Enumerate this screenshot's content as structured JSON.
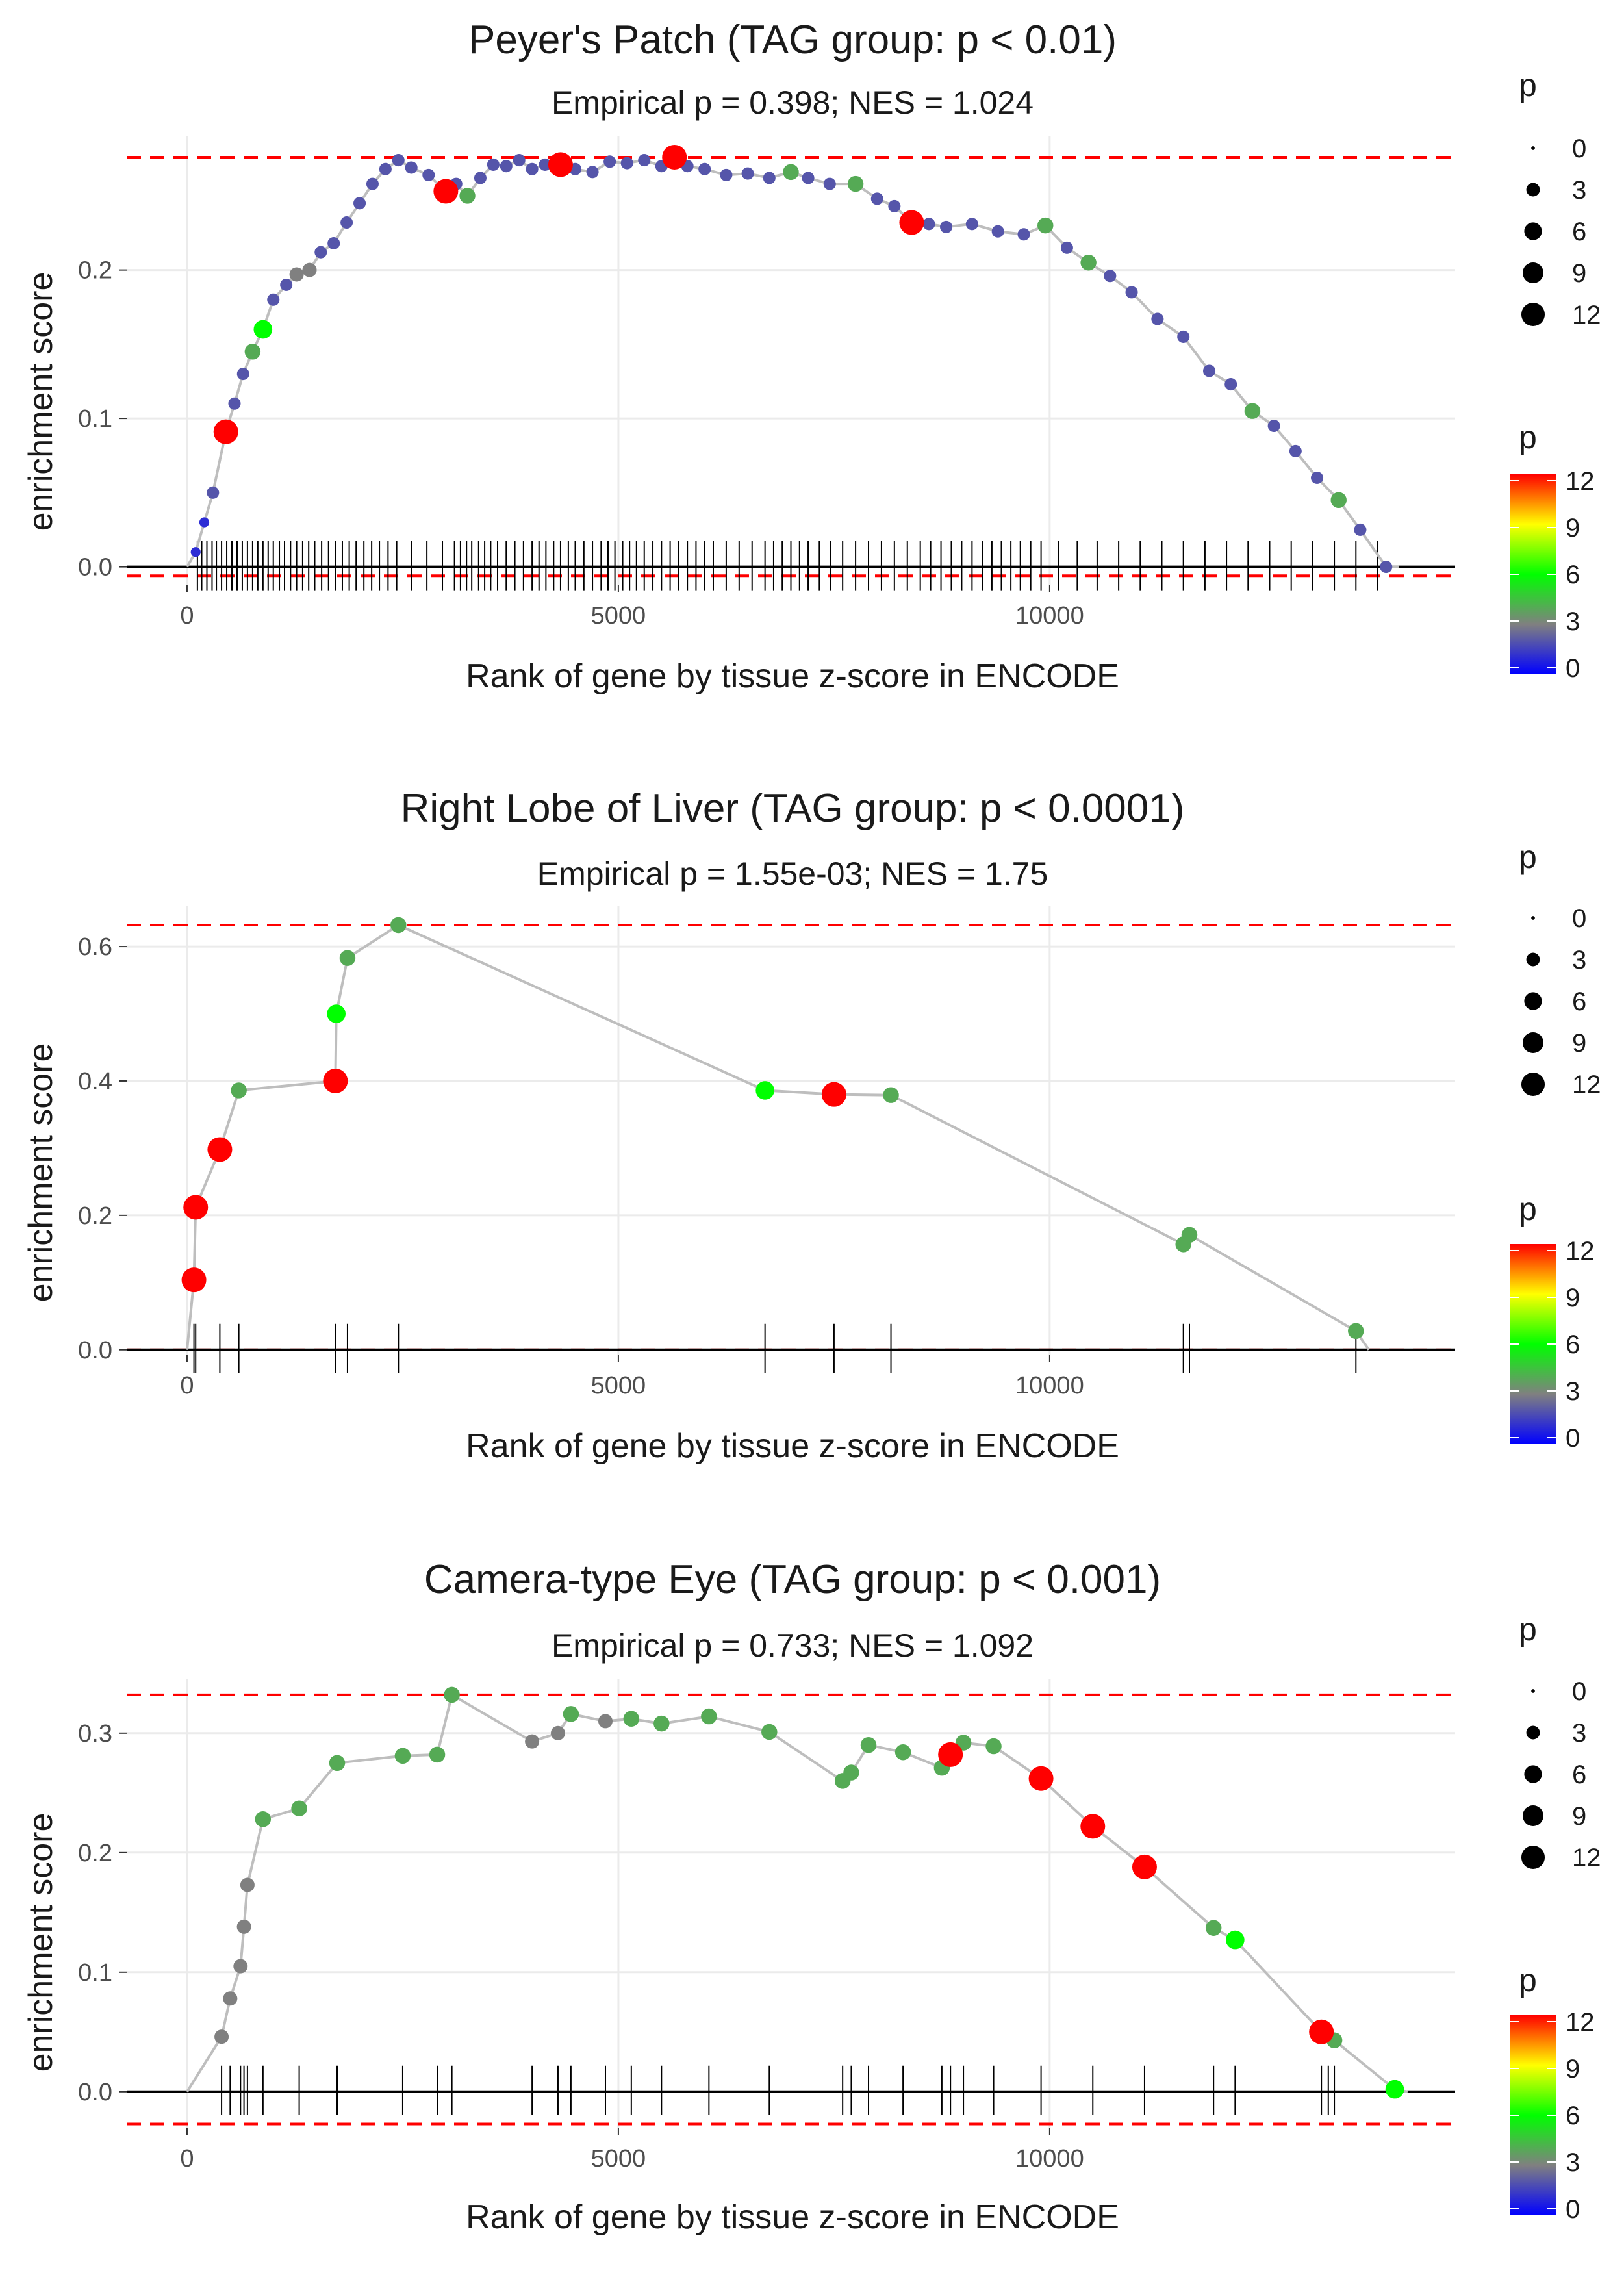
{
  "colors": {
    "threshold": "#ff0000",
    "line": "#bebebe",
    "grid": "#ebebeb",
    "rug": "#000000",
    "gradient": [
      "#0000ff",
      "#808080",
      "#00ff00",
      "#ffff00",
      "#ff0000"
    ]
  },
  "chart_data": [
    {
      "type": "line",
      "title": "Peyer's Patch (TAG group: p < 0.01)",
      "subtitle": "Empirical p = 0.398; NES = 1.024",
      "xlabel": "Rank of gene by tissue z-score in ENCODE",
      "ylabel": "enrichment score",
      "xlim": [
        -700,
        14700
      ],
      "ylim": [
        -0.012,
        0.29
      ],
      "x_ticks": [
        0,
        5000,
        10000
      ],
      "x_tick_labels": [
        "0",
        "5000",
        "10000"
      ],
      "y_ticks": [
        0.0,
        0.1,
        0.2
      ],
      "y_tick_labels": [
        "0.0",
        "0.1",
        "0.2"
      ],
      "max_line": 0.276,
      "min_line": -0.006,
      "legend_size": {
        "title": "p",
        "labels": [
          "0",
          "3",
          "6",
          "9",
          "12"
        ]
      },
      "legend_color": {
        "title": "p",
        "labels": [
          "12",
          "9",
          "6",
          "3",
          "0"
        ]
      },
      "points": [
        [
          100,
          0.01,
          1
        ],
        [
          200,
          0.03,
          1
        ],
        [
          300,
          0.05,
          2
        ],
        [
          450,
          0.091,
          12
        ],
        [
          550,
          0.11,
          2
        ],
        [
          650,
          0.13,
          2
        ],
        [
          760,
          0.145,
          4
        ],
        [
          880,
          0.16,
          6
        ],
        [
          1000,
          0.18,
          2
        ],
        [
          1150,
          0.19,
          2
        ],
        [
          1270,
          0.197,
          3
        ],
        [
          1420,
          0.2,
          3
        ],
        [
          1550,
          0.212,
          2
        ],
        [
          1700,
          0.218,
          2
        ],
        [
          1850,
          0.232,
          2
        ],
        [
          2000,
          0.245,
          2
        ],
        [
          2150,
          0.258,
          2
        ],
        [
          2300,
          0.268,
          2
        ],
        [
          2450,
          0.274,
          2
        ],
        [
          2600,
          0.269,
          2
        ],
        [
          2800,
          0.264,
          2
        ],
        [
          3000,
          0.253,
          12
        ],
        [
          3120,
          0.258,
          2
        ],
        [
          3250,
          0.25,
          4
        ],
        [
          3400,
          0.262,
          2
        ],
        [
          3550,
          0.271,
          2
        ],
        [
          3700,
          0.27,
          2
        ],
        [
          3850,
          0.274,
          2
        ],
        [
          4000,
          0.268,
          2
        ],
        [
          4150,
          0.271,
          2
        ],
        [
          4330,
          0.271,
          12
        ],
        [
          4500,
          0.268,
          2
        ],
        [
          4700,
          0.266,
          2
        ],
        [
          4900,
          0.273,
          2
        ],
        [
          5100,
          0.272,
          2
        ],
        [
          5300,
          0.274,
          2
        ],
        [
          5500,
          0.27,
          2
        ],
        [
          5650,
          0.276,
          12
        ],
        [
          5800,
          0.27,
          2
        ],
        [
          6000,
          0.268,
          2
        ],
        [
          6250,
          0.264,
          2
        ],
        [
          6500,
          0.265,
          2
        ],
        [
          6750,
          0.262,
          2
        ],
        [
          7000,
          0.266,
          4
        ],
        [
          7200,
          0.262,
          2
        ],
        [
          7450,
          0.258,
          2
        ],
        [
          7750,
          0.258,
          4
        ],
        [
          8000,
          0.248,
          2
        ],
        [
          8200,
          0.243,
          2
        ],
        [
          8400,
          0.232,
          12
        ],
        [
          8600,
          0.231,
          2
        ],
        [
          8800,
          0.229,
          2
        ],
        [
          9100,
          0.231,
          2
        ],
        [
          9400,
          0.226,
          2
        ],
        [
          9700,
          0.224,
          2
        ],
        [
          9950,
          0.23,
          4
        ],
        [
          10200,
          0.215,
          2
        ],
        [
          10450,
          0.205,
          4
        ],
        [
          10700,
          0.196,
          2
        ],
        [
          10950,
          0.185,
          2
        ],
        [
          11250,
          0.167,
          2
        ],
        [
          11550,
          0.155,
          2
        ],
        [
          11850,
          0.132,
          2
        ],
        [
          12100,
          0.123,
          2
        ],
        [
          12350,
          0.105,
          4
        ],
        [
          12600,
          0.095,
          2
        ],
        [
          12850,
          0.078,
          2
        ],
        [
          13100,
          0.06,
          2
        ],
        [
          13350,
          0.045,
          4
        ],
        [
          13600,
          0.025,
          2
        ],
        [
          13900,
          0.0,
          2
        ]
      ],
      "rug": [
        120,
        170,
        230,
        290,
        340,
        400,
        460,
        520,
        580,
        640,
        700,
        760,
        820,
        880,
        940,
        1000,
        1070,
        1130,
        1200,
        1270,
        1340,
        1410,
        1480,
        1560,
        1640,
        1720,
        1800,
        1880,
        1960,
        2050,
        2140,
        2230,
        2330,
        2430,
        2600,
        2780,
        2960,
        3100,
        3170,
        3240,
        3300,
        3380,
        3450,
        3520,
        3600,
        3700,
        3800,
        3900,
        4000,
        4080,
        4160,
        4250,
        4330,
        4420,
        4500,
        4600,
        4700,
        4800,
        4880,
        4960,
        5050,
        5130,
        5210,
        5300,
        5400,
        5500,
        5600,
        5700,
        5800,
        5900,
        6000,
        6100,
        6250,
        6400,
        6550,
        6700,
        6800,
        6900,
        7000,
        7100,
        7200,
        7330,
        7460,
        7600,
        7750,
        7900,
        8050,
        8200,
        8350,
        8500,
        8620,
        8740,
        8860,
        8980,
        9100,
        9220,
        9330,
        9440,
        9550,
        9660,
        9780,
        9900,
        10100,
        10320,
        10550,
        10800,
        11050,
        11300,
        11550,
        11800,
        12050,
        12300,
        12550,
        12800,
        13050,
        13300,
        13550,
        13800
      ]
    },
    {
      "type": "line",
      "title": "Right Lobe of Liver (TAG group: p < 0.0001)",
      "subtitle": "Empirical p = 1.55e-03; NES = 1.75",
      "xlabel": "Rank of gene by tissue z-score in ENCODE",
      "ylabel": "enrichment score",
      "xlim": [
        -700,
        14700
      ],
      "ylim": [
        -0.007,
        0.66
      ],
      "x_ticks": [
        0,
        5000,
        10000
      ],
      "x_tick_labels": [
        "0",
        "5000",
        "10000"
      ],
      "y_ticks": [
        0.0,
        0.2,
        0.4,
        0.6
      ],
      "y_tick_labels": [
        "0.0",
        "0.2",
        "0.4",
        "0.6"
      ],
      "max_line": 0.632,
      "min_line": 0.0,
      "legend_size": {
        "title": "p",
        "labels": [
          "0",
          "3",
          "6",
          "9",
          "12"
        ]
      },
      "legend_color": {
        "title": "p",
        "labels": [
          "12",
          "9",
          "6",
          "3",
          "0"
        ]
      },
      "points": [
        [
          80,
          0.104,
          12
        ],
        [
          100,
          0.212,
          12
        ],
        [
          380,
          0.298,
          12
        ],
        [
          600,
          0.386,
          4
        ],
        [
          1720,
          0.4,
          12
        ],
        [
          1730,
          0.5,
          6
        ],
        [
          1860,
          0.583,
          4
        ],
        [
          2450,
          0.632,
          4
        ],
        [
          6700,
          0.386,
          6
        ],
        [
          7500,
          0.38,
          12
        ],
        [
          8160,
          0.379,
          4
        ],
        [
          11550,
          0.157,
          4
        ],
        [
          11620,
          0.171,
          4
        ],
        [
          13550,
          0.028,
          4
        ]
      ],
      "rug": [
        80,
        100,
        380,
        600,
        1720,
        1860,
        2450,
        6700,
        7500,
        8160,
        11550,
        11620,
        13550
      ]
    },
    {
      "type": "line",
      "title": "Camera-type Eye (TAG group: p < 0.001)",
      "subtitle": "Empirical p = 0.733; NES = 1.092",
      "xlabel": "Rank of gene by tissue z-score in ENCODE",
      "ylabel": "enrichment score",
      "xlim": [
        -700,
        14700
      ],
      "ylim": [
        -0.03,
        0.345
      ],
      "x_ticks": [
        0,
        5000,
        10000
      ],
      "x_tick_labels": [
        "0",
        "5000",
        "10000"
      ],
      "y_ticks": [
        0.0,
        0.1,
        0.2,
        0.3
      ],
      "y_tick_labels": [
        "0.0",
        "0.1",
        "0.2",
        "0.3"
      ],
      "max_line": 0.332,
      "min_line": -0.027,
      "legend_size": {
        "title": "p",
        "labels": [
          "0",
          "3",
          "6",
          "9",
          "12"
        ]
      },
      "legend_color": {
        "title": "p",
        "labels": [
          "12",
          "9",
          "6",
          "3",
          "0"
        ]
      },
      "points": [
        [
          400,
          0.046,
          3
        ],
        [
          500,
          0.078,
          3
        ],
        [
          620,
          0.105,
          3
        ],
        [
          660,
          0.138,
          3
        ],
        [
          700,
          0.173,
          3
        ],
        [
          880,
          0.228,
          4
        ],
        [
          1300,
          0.237,
          4
        ],
        [
          1740,
          0.275,
          4
        ],
        [
          2500,
          0.281,
          4
        ],
        [
          2900,
          0.282,
          4
        ],
        [
          3070,
          0.332,
          4
        ],
        [
          4000,
          0.293,
          3
        ],
        [
          4300,
          0.3,
          3
        ],
        [
          4450,
          0.316,
          4
        ],
        [
          4850,
          0.31,
          3
        ],
        [
          5150,
          0.312,
          4
        ],
        [
          5500,
          0.308,
          4
        ],
        [
          6050,
          0.314,
          4
        ],
        [
          6750,
          0.301,
          4
        ],
        [
          7600,
          0.26,
          4
        ],
        [
          7700,
          0.267,
          4
        ],
        [
          7900,
          0.29,
          4
        ],
        [
          8300,
          0.284,
          4
        ],
        [
          8750,
          0.271,
          4
        ],
        [
          8850,
          0.282,
          12
        ],
        [
          9000,
          0.292,
          4
        ],
        [
          9350,
          0.289,
          4
        ],
        [
          9900,
          0.262,
          12
        ],
        [
          10500,
          0.222,
          12
        ],
        [
          11100,
          0.188,
          12
        ],
        [
          11900,
          0.137,
          4
        ],
        [
          12150,
          0.127,
          6
        ],
        [
          13150,
          0.05,
          12
        ],
        [
          13300,
          0.043,
          4
        ],
        [
          14000,
          0.002,
          6
        ]
      ],
      "rug": [
        400,
        500,
        620,
        660,
        700,
        880,
        1300,
        1740,
        2500,
        2900,
        3070,
        4000,
        4300,
        4450,
        4850,
        5150,
        5500,
        6050,
        6750,
        7600,
        7700,
        7900,
        8300,
        8750,
        8850,
        9000,
        9350,
        9900,
        10500,
        11100,
        11900,
        12150,
        13150,
        13230,
        13300
      ]
    }
  ]
}
